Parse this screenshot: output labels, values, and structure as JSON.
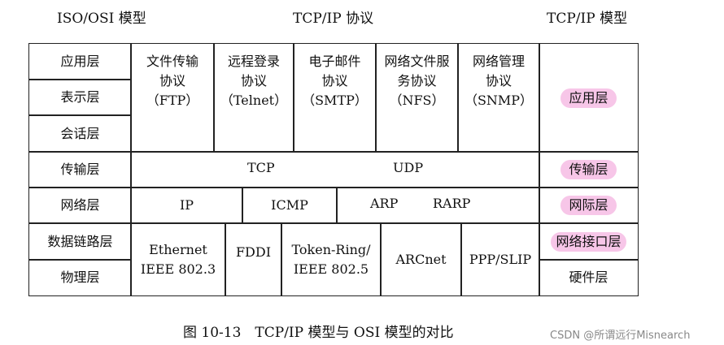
{
  "headers": {
    "left": "ISO/OSI 模型",
    "center": "TCP/IP 协议",
    "right": "TCP/IP 模型"
  },
  "osi_layers": [
    "应用层",
    "表示层",
    "会话层",
    "传输层",
    "网络层",
    "数据链路层",
    "物理层"
  ],
  "app_protocols": [
    {
      "name": "文件传输协议",
      "line1": "文件传输",
      "line2": "协议",
      "abbr": "（FTP）"
    },
    {
      "name": "远程登录协议",
      "line1": "远程登录",
      "line2": "协议",
      "abbr": "（Telnet）"
    },
    {
      "name": "电子邮件协议",
      "line1": "电子邮件",
      "line2": "协议",
      "abbr": "（SMTP）"
    },
    {
      "name": "网络文件服务协议",
      "line1": "网络文件服",
      "line2": "务协议",
      "abbr": "（NFS）"
    },
    {
      "name": "网络管理协议",
      "line1": "网络管理",
      "line2": "协议",
      "abbr": "（SNMP）"
    }
  ],
  "transport_protocols": [
    "TCP",
    "UDP"
  ],
  "network_protocols": [
    "IP",
    "ICMP",
    "ARP",
    "RARP"
  ],
  "link_protocols": {
    "ethernet_line1": "Ethernet",
    "ethernet_line2": "IEEE 802.3",
    "fddi": "FDDI",
    "token_line1": "Token-Ring/",
    "token_line2": "IEEE 802.5",
    "arcnet": "ARCnet",
    "ppp": "PPP/SLIP"
  },
  "tcpip_layers": [
    "应用层",
    "传输层",
    "网际层",
    "网络接口层",
    "硬件层"
  ],
  "highlight_color": "#f7c6e8",
  "caption": "图 10-13　TCP/IP 模型与 OSI 模型的对比",
  "watermark": "CSDN @所谓远行Misnearch"
}
